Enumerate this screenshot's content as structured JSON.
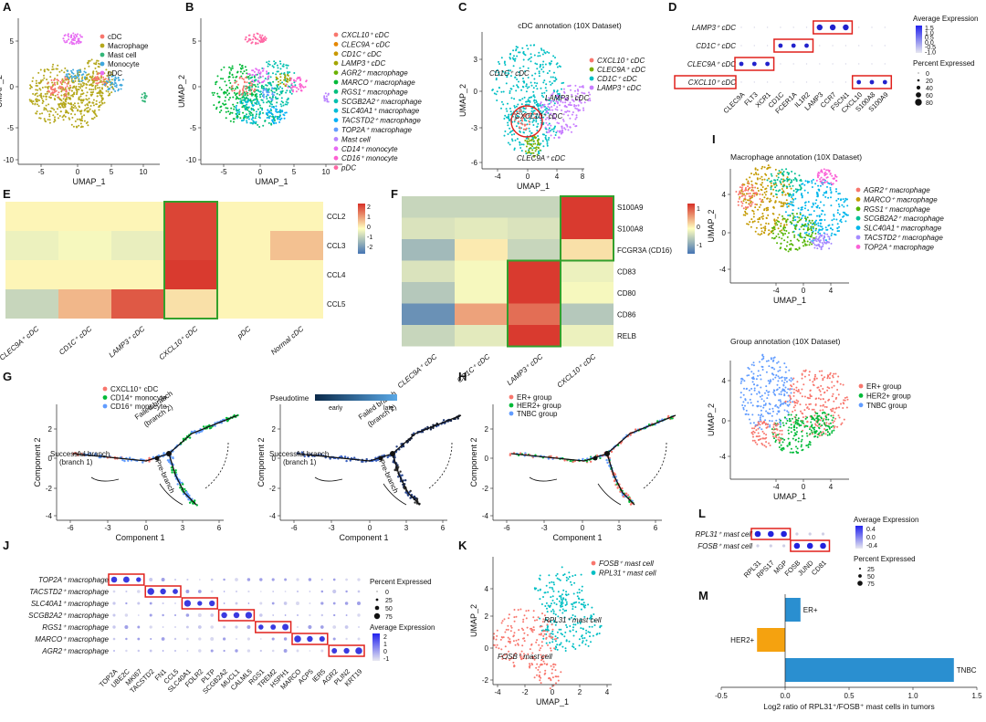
{
  "panels": {
    "A": {
      "letter": "A",
      "legend": [
        "cDC",
        "Macrophage",
        "Mast cell",
        "Monocyte",
        "pDC"
      ],
      "colors": [
        "#f8766d",
        "#b5a81c",
        "#33b679",
        "#3fa7dd",
        "#e76bf3"
      ],
      "xlabel": "UMAP_1",
      "ylabel": "UMAP_2",
      "xticks": [
        "-5",
        "0",
        "5",
        "10"
      ],
      "yticks": [
        "5",
        "0",
        "-5",
        "-10"
      ]
    },
    "B": {
      "letter": "B",
      "legend": [
        "CXCL10⁺ cDC",
        "CLEC9A⁺ cDC",
        "CD1C⁺ cDC",
        "LAMP3⁺ cDC",
        "AGR2⁺ macrophage",
        "MARCO⁺ macrophage",
        "RGS1⁺ macrophage",
        "SCGB2A2⁺ macrophage",
        "SLC40A1⁺ macrophage",
        "TACSTD2⁺ macrophage",
        "TOP2A⁺ macrophage",
        "Mast cell",
        "CD14⁺ monocyte",
        "CD16⁺ monocyte",
        "pDC"
      ],
      "colors": [
        "#f8766d",
        "#e58700",
        "#c99800",
        "#a3a500",
        "#6bb100",
        "#00ba38",
        "#00bf7d",
        "#00c0af",
        "#00bcd8",
        "#00b0f6",
        "#619cff",
        "#b983ff",
        "#e76bf3",
        "#fd61d1",
        "#ff67a4"
      ],
      "xlabel": "UMAP_1",
      "ylabel": "UMAP_2",
      "xticks": [
        "-5",
        "0",
        "5",
        "10"
      ],
      "yticks": [
        "5",
        "0",
        "-5",
        "-10"
      ]
    },
    "C": {
      "letter": "C",
      "title": "cDC annotation  (10X Dataset)",
      "legend": [
        "CXCL10⁺ cDC",
        "CLEC9A⁺ cDC",
        "CD1C⁺ cDC",
        "LAMP3⁺ cDC"
      ],
      "colors": [
        "#f8766d",
        "#7cae00",
        "#00bfc4",
        "#c77cff"
      ],
      "labels": [
        "CD1C⁺ cDC",
        "LAMP3⁺ cDC",
        "CXCL10⁺ cDC",
        "CLEC9A⁺ cDC"
      ],
      "xlabel": "UMAP_1",
      "ylabel": "UMAP_2",
      "xticks": [
        "-4",
        "0",
        "4",
        "8"
      ],
      "yticks": [
        "3",
        "0",
        "-3",
        "-6"
      ]
    },
    "D": {
      "letter": "D",
      "rows": [
        "LAMP3⁺ cDC",
        "CD1C⁺ cDC",
        "CLEC9A⁺ cDC",
        "CXCL10⁺ cDC"
      ],
      "genes": [
        "CLEC9A",
        "FLT3",
        "XCR1",
        "CD1C",
        "FCER1A",
        "IL1R2",
        "LAMP3",
        "CCR7",
        "FSCN1",
        "CXCL10",
        "S100A8",
        "S100A9"
      ],
      "legend_title_1": "Average Expression",
      "avg_ticks": [
        "1.5",
        "1.0",
        "0.5",
        "0.0",
        "-0.5",
        "-1.0"
      ],
      "legend_title_2": "Percent Expressed",
      "pct_ticks": [
        "0",
        "20",
        "40",
        "60",
        "80"
      ]
    },
    "E": {
      "letter": "E",
      "rows": [
        "CCL2",
        "CCL3",
        "CCL4",
        "CCL5"
      ],
      "cols": [
        "CLEC9A⁺ cDC",
        "CD1C⁺ cDC",
        "LAMP3⁺ cDC",
        "CXCL10⁺ cDC",
        "pDC",
        "Normal cDC"
      ],
      "scale_ticks": [
        "2",
        "1",
        "0",
        "-1",
        "-2"
      ]
    },
    "F": {
      "letter": "F",
      "rows": [
        "S100A9",
        "S100A8",
        "FCGR3A (CD16)",
        "CD83",
        "CD80",
        "CD86",
        "RELB"
      ],
      "cols": [
        "CLEC9A⁺ cDC",
        "CD1C⁺ cDC",
        "LAMP3⁺ cDC",
        "CXCL10⁺ cDC"
      ],
      "scale_ticks": [
        "1",
        "0",
        "-1"
      ]
    },
    "G": {
      "letter": "G",
      "legend": [
        "CXCL10⁺ cDC",
        "CD14⁺ monocyte",
        "CD16⁺ monocyte"
      ],
      "colors": [
        "#f8766d",
        "#00ba38",
        "#619cff"
      ],
      "annot": [
        "Successful branch",
        "(branch 1)",
        "Failed branch",
        "(branch 2)",
        "Pre-branch"
      ],
      "pseudotime_title": "Pseudotime",
      "pseudo_labels": [
        "early",
        "late"
      ],
      "xlabel": "Component 1",
      "ylabel": "Component 2",
      "xticks": [
        "-6",
        "-3",
        "0",
        "3",
        "6"
      ],
      "yticks": [
        "2",
        "0",
        "-2",
        "-4"
      ]
    },
    "H": {
      "letter": "H",
      "legend": [
        "ER+ group",
        "HER2+ group",
        "TNBC group"
      ],
      "colors": [
        "#f8766d",
        "#00ba38",
        "#619cff"
      ],
      "xlabel": "Component 1",
      "ylabel": "Component 2",
      "xticks": [
        "-6",
        "-3",
        "0",
        "3",
        "6"
      ],
      "yticks": [
        "2",
        "0",
        "-2",
        "-4"
      ]
    },
    "I": {
      "letter": "I",
      "title1": "Macrophage annotation  (10X Dataset)",
      "legend1": [
        "AGR2⁺ macrophage",
        "MARCO⁺ macrophage",
        "RGS1⁺ macrophage",
        "SCGB2A2⁺ macrophage",
        "SLC40A1⁺ macrophage",
        "TACSTD2⁺ macrophage",
        "TOP2A⁺ macrophage"
      ],
      "colors1": [
        "#f8766d",
        "#c49a00",
        "#53b400",
        "#00c094",
        "#00b6eb",
        "#a58aff",
        "#fb61d7"
      ],
      "title2": "Group annotation  (10X Dataset)",
      "legend2": [
        "ER+ group",
        "HER2+ group",
        "TNBC group"
      ],
      "colors2": [
        "#f8766d",
        "#00ba38",
        "#619cff"
      ],
      "xlabel": "UMAP_1",
      "ylabel": "UMAP_2",
      "xticks": [
        "-4",
        "0",
        "4"
      ],
      "yticks": [
        "4",
        "0",
        "-4"
      ]
    },
    "J": {
      "letter": "J",
      "rows": [
        "TOP2A⁺ macrophage",
        "TACSTD2⁺ macrophage",
        "SLC40A1⁺ macrophage",
        "SCGB2A2⁺ macrophage",
        "RGS1⁺ macrophage",
        "MARCO⁺ macrophage",
        "AGR2⁺ macrophage"
      ],
      "genes": [
        "TOP2A",
        "UBE2C",
        "MKI67",
        "TACSTD2",
        "FN1",
        "CCL5",
        "SLC40A1",
        "FOLR2",
        "PLTP",
        "SCGB2A2",
        "MUCL1",
        "CALML5",
        "RGS1",
        "TREM2",
        "HSPH1",
        "MARCO",
        "ACP5",
        "IER5",
        "AGR2",
        "PLIN2",
        "KRT19"
      ],
      "legend_title_1": "Percent Expressed",
      "pct_ticks": [
        "0",
        "25",
        "50",
        "75"
      ],
      "legend_title_2": "Average Expression",
      "avg_ticks": [
        "2",
        "1",
        "0",
        "-1"
      ]
    },
    "K": {
      "letter": "K",
      "legend": [
        "FOSB⁺ mast cell",
        "RPL31⁺ mast cell"
      ],
      "colors": [
        "#f8766d",
        "#00bfc4"
      ],
      "labels": [
        "RPL31⁺ mast cell",
        "FOSB⁺ mast cell"
      ],
      "xlabel": "UMAP_1",
      "ylabel": "UMAP_2",
      "xticks": [
        "-4",
        "-2",
        "0",
        "2",
        "4"
      ],
      "yticks": [
        "4",
        "2",
        "0",
        "-2"
      ]
    },
    "L": {
      "letter": "L",
      "rows": [
        "RPL31⁺ mast cell",
        "FOSB⁺ mast cell"
      ],
      "genes": [
        "RPL31",
        "RPS17",
        "MGP",
        "FOSB",
        "JUND",
        "CD81"
      ],
      "legend_title_1": "Average Expression",
      "avg_ticks": [
        "0.4",
        "0.0",
        "-0.4"
      ],
      "legend_title_2": "Percent Expressed",
      "pct_ticks": [
        "25",
        "50",
        "75"
      ]
    },
    "M": {
      "letter": "M",
      "xlabel": "Log2 ratio of RPL31⁺/FOSB⁺ mast cells in tumors",
      "xticks": [
        "-0.5",
        "0.0",
        "0.5",
        "1.0",
        "1.5"
      ]
    }
  },
  "chart_data": {
    "type": "bar",
    "orientation": "horizontal",
    "categories": [
      "ER+",
      "HER2+",
      "TNBC"
    ],
    "values": [
      0.12,
      -0.22,
      1.32
    ],
    "colors": [
      "#2a8fd0",
      "#f5a20f",
      "#2a8fd0"
    ],
    "xlabel": "Log2 ratio of RPL31⁺/FOSB⁺ mast cells in tumors",
    "xlim": [
      -0.5,
      1.5
    ]
  }
}
